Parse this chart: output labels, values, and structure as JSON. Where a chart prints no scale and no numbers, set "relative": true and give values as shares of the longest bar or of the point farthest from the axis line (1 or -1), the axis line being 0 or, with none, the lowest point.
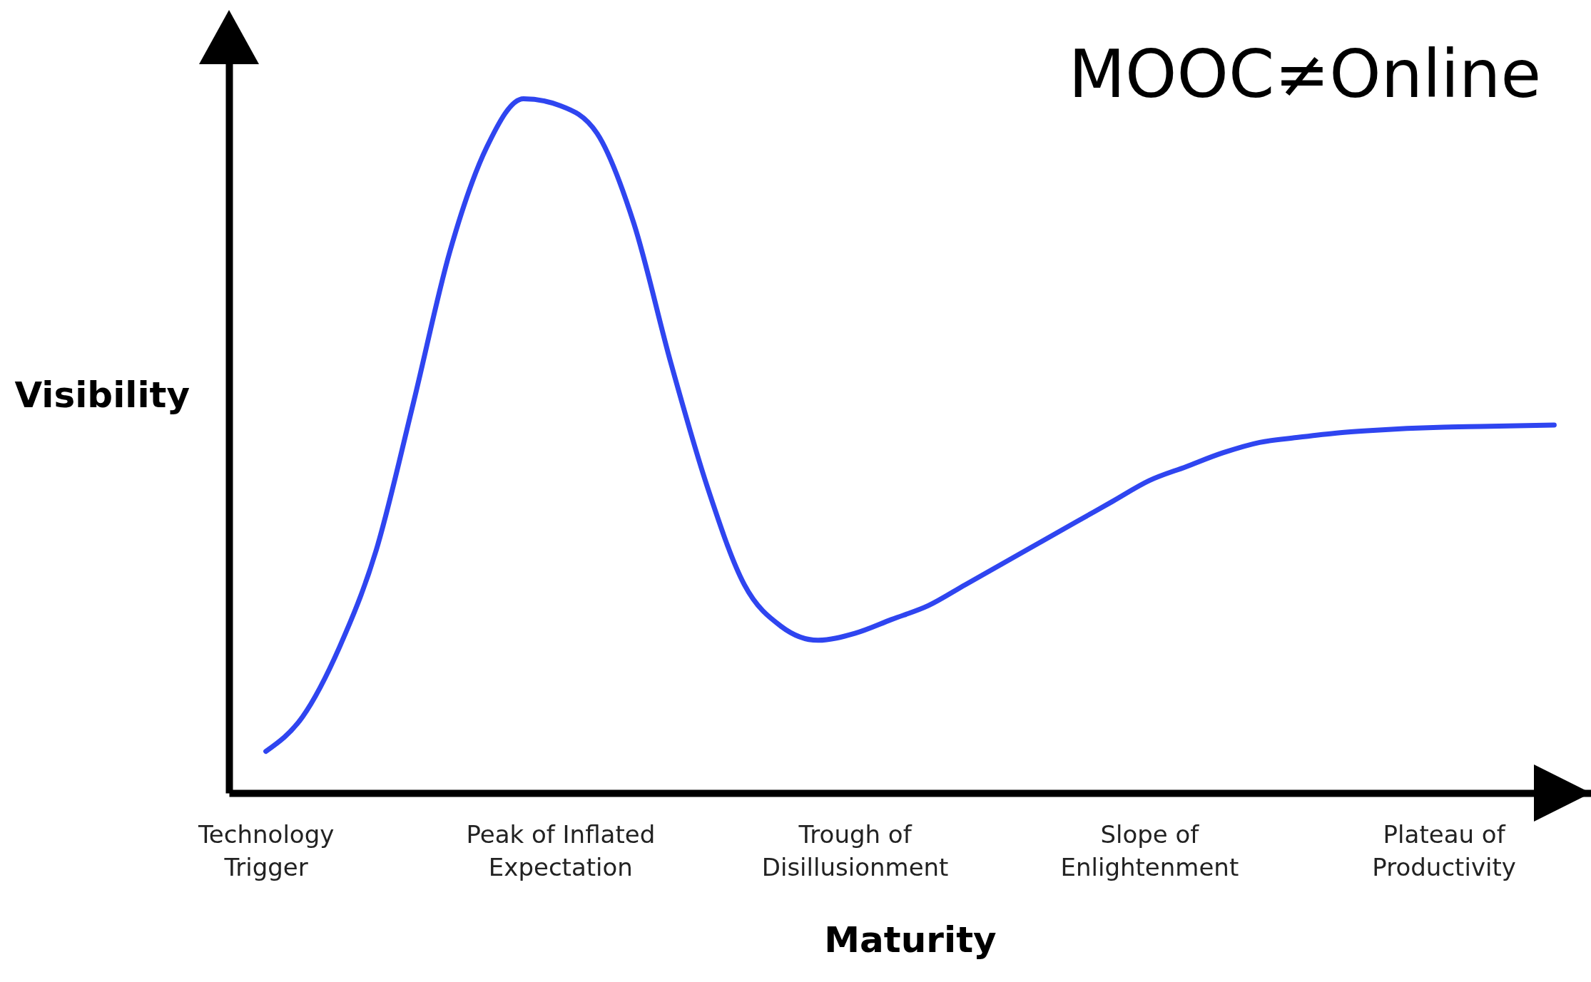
{
  "chart_data": {
    "type": "line",
    "title": "MOOC≠Online",
    "xlabel": "Maturity",
    "ylabel": "Visibility",
    "relative": true,
    "categories": [
      "Technology\nTrigger",
      null,
      null,
      null,
      null,
      null,
      null,
      null,
      "Peak of Inflated\nExpectation",
      null,
      null,
      null,
      null,
      null,
      null,
      null,
      "Trough of\nDisillusionment",
      null,
      null,
      null,
      null,
      null,
      null,
      null,
      "Slope of\nEnlightenment",
      null,
      null,
      null,
      null,
      null,
      null,
      null,
      "Plateau of\nProductivity",
      null,
      null,
      null
    ],
    "series": [
      {
        "color": "#2f45f0",
        "values": [
          0.06,
          0.11,
          0.21,
          0.35,
          0.56,
          0.78,
          0.93,
          1,
          0.99,
          0.95,
          0.82,
          0.62,
          0.44,
          0.3,
          0.24,
          0.22,
          0.23,
          0.25,
          0.27,
          0.3,
          0.33,
          0.36,
          0.39,
          0.42,
          0.45,
          0.47,
          0.49,
          0.505,
          0.512,
          0.518,
          0.522,
          0.525,
          0.527,
          0.528,
          0.529,
          0.53
        ]
      }
    ]
  }
}
